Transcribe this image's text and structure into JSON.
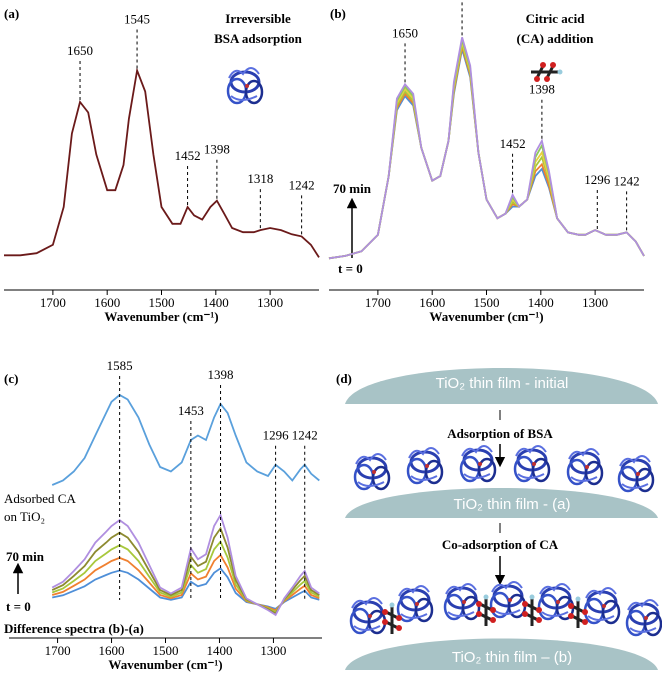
{
  "chart_data": [
    {
      "type": "line",
      "label": "(a)",
      "title": [
        "Irreversible",
        "BSA adsorption"
      ],
      "xlabel": "Wavenumber (cm⁻¹)",
      "xlim": [
        1790,
        1210
      ],
      "xticks": [
        1700,
        1600,
        1500,
        1400,
        1300
      ],
      "ylim": [
        0,
        1
      ],
      "x": [
        1790,
        1760,
        1730,
        1700,
        1680,
        1665,
        1650,
        1635,
        1620,
        1600,
        1585,
        1570,
        1560,
        1545,
        1530,
        1515,
        1500,
        1480,
        1465,
        1452,
        1440,
        1425,
        1410,
        1398,
        1385,
        1370,
        1350,
        1330,
        1318,
        1300,
        1280,
        1260,
        1242,
        1225,
        1210
      ],
      "series": [
        {
          "color": "#6b1a1a",
          "values": [
            0.07,
            0.07,
            0.08,
            0.12,
            0.3,
            0.65,
            0.8,
            0.75,
            0.55,
            0.38,
            0.38,
            0.5,
            0.72,
            0.95,
            0.85,
            0.55,
            0.3,
            0.22,
            0.22,
            0.3,
            0.26,
            0.24,
            0.3,
            0.33,
            0.27,
            0.2,
            0.18,
            0.18,
            0.19,
            0.2,
            0.19,
            0.17,
            0.16,
            0.12,
            0.06
          ]
        }
      ],
      "peaks": [
        1650,
        1545,
        1452,
        1398,
        1318,
        1242
      ]
    },
    {
      "type": "line",
      "label": "(b)",
      "title": [
        "Citric acid",
        "(CA) addition"
      ],
      "xlabel": "Wavenumber (cm⁻¹)",
      "xlim": [
        1790,
        1210
      ],
      "xticks": [
        1700,
        1600,
        1500,
        1400,
        1300
      ],
      "ylim": [
        0,
        1
      ],
      "arrow_top_label": "70 min",
      "arrow_bottom_label": "t = 0",
      "x": [
        1790,
        1760,
        1730,
        1700,
        1680,
        1665,
        1650,
        1635,
        1620,
        1600,
        1585,
        1570,
        1560,
        1545,
        1530,
        1515,
        1500,
        1480,
        1465,
        1452,
        1440,
        1425,
        1410,
        1398,
        1385,
        1370,
        1350,
        1330,
        1318,
        1300,
        1280,
        1260,
        1242,
        1225,
        1210
      ],
      "series": [
        {
          "color": "#4f8fd8",
          "values": [
            0.05,
            0.06,
            0.08,
            0.15,
            0.4,
            0.68,
            0.74,
            0.7,
            0.52,
            0.38,
            0.4,
            0.55,
            0.75,
            0.94,
            0.82,
            0.5,
            0.3,
            0.22,
            0.24,
            0.27,
            0.27,
            0.3,
            0.4,
            0.43,
            0.35,
            0.22,
            0.16,
            0.15,
            0.15,
            0.17,
            0.15,
            0.15,
            0.16,
            0.12,
            0.06
          ]
        },
        {
          "color": "#f08030",
          "values": [
            0.05,
            0.06,
            0.08,
            0.15,
            0.4,
            0.69,
            0.75,
            0.71,
            0.52,
            0.38,
            0.4,
            0.55,
            0.76,
            0.95,
            0.83,
            0.5,
            0.3,
            0.22,
            0.24,
            0.28,
            0.27,
            0.3,
            0.42,
            0.45,
            0.36,
            0.22,
            0.16,
            0.15,
            0.15,
            0.17,
            0.15,
            0.15,
            0.16,
            0.12,
            0.06
          ]
        },
        {
          "color": "#a8c83c",
          "values": [
            0.05,
            0.06,
            0.08,
            0.15,
            0.4,
            0.7,
            0.76,
            0.72,
            0.52,
            0.38,
            0.4,
            0.55,
            0.77,
            0.96,
            0.84,
            0.5,
            0.3,
            0.22,
            0.24,
            0.29,
            0.27,
            0.3,
            0.44,
            0.48,
            0.38,
            0.22,
            0.16,
            0.15,
            0.15,
            0.17,
            0.15,
            0.15,
            0.16,
            0.12,
            0.06
          ]
        },
        {
          "color": "#e8d040",
          "values": [
            0.05,
            0.06,
            0.08,
            0.15,
            0.4,
            0.71,
            0.77,
            0.73,
            0.52,
            0.38,
            0.4,
            0.55,
            0.78,
            0.97,
            0.85,
            0.5,
            0.3,
            0.22,
            0.24,
            0.3,
            0.27,
            0.3,
            0.46,
            0.5,
            0.39,
            0.22,
            0.16,
            0.15,
            0.15,
            0.17,
            0.15,
            0.15,
            0.16,
            0.12,
            0.06
          ]
        },
        {
          "color": "#8fca5a",
          "values": [
            0.05,
            0.06,
            0.08,
            0.15,
            0.4,
            0.72,
            0.78,
            0.74,
            0.52,
            0.38,
            0.4,
            0.55,
            0.79,
            0.98,
            0.86,
            0.5,
            0.3,
            0.22,
            0.24,
            0.31,
            0.27,
            0.3,
            0.48,
            0.53,
            0.41,
            0.22,
            0.16,
            0.15,
            0.15,
            0.17,
            0.15,
            0.15,
            0.16,
            0.12,
            0.06
          ]
        },
        {
          "color": "#b08fe0",
          "values": [
            0.05,
            0.06,
            0.08,
            0.15,
            0.4,
            0.73,
            0.79,
            0.75,
            0.52,
            0.38,
            0.4,
            0.55,
            0.8,
            0.99,
            0.87,
            0.5,
            0.3,
            0.22,
            0.24,
            0.32,
            0.27,
            0.3,
            0.5,
            0.55,
            0.42,
            0.22,
            0.16,
            0.15,
            0.15,
            0.17,
            0.15,
            0.15,
            0.16,
            0.12,
            0.06
          ]
        }
      ],
      "peaks": [
        1650,
        1545,
        1452,
        1398,
        1296,
        1242
      ]
    },
    {
      "type": "line",
      "label": "(c)",
      "side_label": [
        "Adsorbed CA",
        "on TiO₂"
      ],
      "caption": "Difference spectra (b)-(a)",
      "xlabel": "Wavenumber (cm⁻¹)",
      "xlim": [
        1790,
        1210
      ],
      "xticks": [
        1700,
        1600,
        1500,
        1400,
        1300
      ],
      "ylim": [
        0,
        1
      ],
      "arrow_top_label": "70 min",
      "arrow_bottom_label": "t = 0",
      "x": [
        1710,
        1690,
        1670,
        1650,
        1630,
        1610,
        1600,
        1585,
        1570,
        1550,
        1530,
        1510,
        1490,
        1470,
        1453,
        1440,
        1425,
        1410,
        1398,
        1385,
        1370,
        1350,
        1330,
        1310,
        1296,
        1280,
        1265,
        1250,
        1242,
        1230,
        1215
      ],
      "series": [
        {
          "color": "#5aa0dc",
          "values": [
            0.6,
            0.62,
            0.66,
            0.72,
            0.82,
            0.92,
            0.97,
            1.0,
            0.98,
            0.9,
            0.78,
            0.68,
            0.66,
            0.7,
            0.8,
            0.82,
            0.8,
            0.9,
            0.96,
            0.92,
            0.82,
            0.7,
            0.66,
            0.64,
            0.69,
            0.66,
            0.62,
            0.67,
            0.69,
            0.65,
            0.62
          ]
        },
        {
          "color": "#4f8fd8",
          "values": [
            0.1,
            0.11,
            0.13,
            0.15,
            0.18,
            0.2,
            0.21,
            0.22,
            0.21,
            0.18,
            0.14,
            0.1,
            0.09,
            0.1,
            0.17,
            0.15,
            0.16,
            0.21,
            0.23,
            0.19,
            0.12,
            0.08,
            0.07,
            0.06,
            0.05,
            0.08,
            0.1,
            0.12,
            0.13,
            0.1,
            0.09
          ]
        },
        {
          "color": "#f08030",
          "values": [
            0.111,
            0.125,
            0.152,
            0.18,
            0.221,
            0.248,
            0.262,
            0.276,
            0.262,
            0.221,
            0.166,
            0.111,
            0.097,
            0.111,
            0.207,
            0.18,
            0.193,
            0.262,
            0.289,
            0.234,
            0.139,
            0.084,
            0.07,
            0.056,
            0.043,
            0.084,
            0.111,
            0.139,
            0.152,
            0.111,
            0.097
          ]
        },
        {
          "color": "#a8c83c",
          "values": [
            0.122,
            0.14,
            0.174,
            0.21,
            0.262,
            0.296,
            0.314,
            0.332,
            0.314,
            0.262,
            0.192,
            0.122,
            0.104,
            0.122,
            0.244,
            0.21,
            0.226,
            0.314,
            0.348,
            0.278,
            0.158,
            0.088,
            0.07,
            0.052,
            0.036,
            0.088,
            0.122,
            0.158,
            0.174,
            0.122,
            0.104
          ]
        },
        {
          "color": "#8d8a30",
          "values": [
            0.133,
            0.155,
            0.196,
            0.24,
            0.303,
            0.344,
            0.366,
            0.388,
            0.366,
            0.303,
            0.218,
            0.133,
            0.111,
            0.133,
            0.281,
            0.24,
            0.259,
            0.366,
            0.407,
            0.322,
            0.177,
            0.092,
            0.07,
            0.048,
            0.029,
            0.092,
            0.133,
            0.177,
            0.196,
            0.133,
            0.111
          ]
        },
        {
          "color": "#b08fe0",
          "values": [
            0.144,
            0.17,
            0.218,
            0.27,
            0.344,
            0.392,
            0.418,
            0.444,
            0.418,
            0.344,
            0.244,
            0.144,
            0.118,
            0.144,
            0.318,
            0.27,
            0.292,
            0.418,
            0.466,
            0.366,
            0.196,
            0.096,
            0.07,
            0.044,
            0.022,
            0.096,
            0.144,
            0.196,
            0.218,
            0.144,
            0.118
          ]
        }
      ],
      "peaks": [
        1585,
        1453,
        1398,
        1296,
        1242
      ]
    }
  ],
  "diagram": {
    "label": "(d)",
    "film_initial": "TiO₂ thin film  - initial",
    "step_1": "Adsorption of BSA",
    "film_a": "TiO₂ thin film  - (a)",
    "step_2": "Co-adsorption of CA",
    "film_b": "TiO₂ thin film – (b)"
  }
}
